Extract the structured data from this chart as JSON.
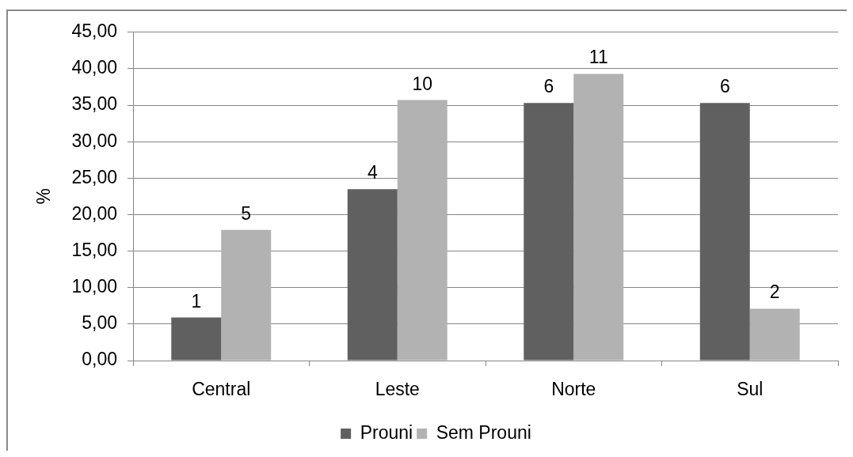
{
  "chart_data": {
    "type": "bar",
    "ylabel": "%",
    "categories": [
      "Central",
      "Leste",
      "Norte",
      "Sul"
    ],
    "series": [
      {
        "name": "Prouni",
        "color": "#606060",
        "values": [
          5.9,
          23.5,
          35.3,
          35.3
        ]
      },
      {
        "name": "Sem Prouni",
        "color": "#b2b2b2",
        "values": [
          17.9,
          35.7,
          39.3,
          7.1
        ]
      }
    ],
    "annotations": [
      {
        "text": "1",
        "x": "Central",
        "y": 5.9
      },
      {
        "text": "4",
        "x": "Leste",
        "y": 23.5
      },
      {
        "text": "6",
        "x": "Norte",
        "y": 35.3
      },
      {
        "text": "6",
        "x": "Sul",
        "y": 35.3
      },
      {
        "text": "5",
        "x": "Central",
        "y": 17.9
      },
      {
        "text": "10",
        "x": "Leste",
        "y": 35.7
      },
      {
        "text": "11",
        "x": "Norte",
        "y": 39.3
      },
      {
        "text": "2",
        "x": "Sul",
        "y": 7.1
      }
    ],
    "ylim": [
      0,
      45
    ],
    "yticks": [
      {
        "value": 0,
        "label": "0,00"
      },
      {
        "value": 5,
        "label": "5,00"
      },
      {
        "value": 10,
        "label": "10,00"
      },
      {
        "value": 15,
        "label": "15,00"
      },
      {
        "value": 20,
        "label": "20,00"
      },
      {
        "value": 25,
        "label": "25,00"
      },
      {
        "value": 30,
        "label": "30,00"
      },
      {
        "value": 35,
        "label": "35,00"
      },
      {
        "value": 40,
        "label": "40,00"
      },
      {
        "value": 45,
        "label": "45,00"
      }
    ],
    "grid": "y",
    "legend": "bottom"
  }
}
